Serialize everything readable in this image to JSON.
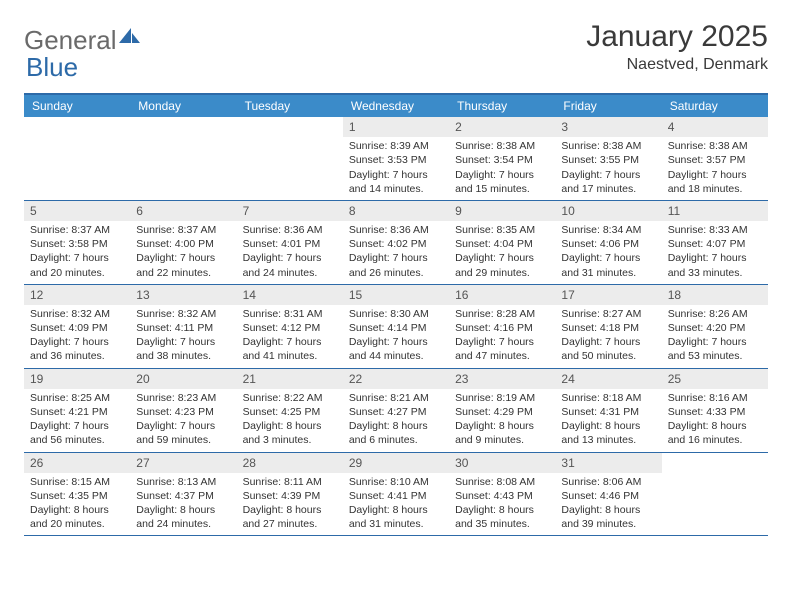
{
  "logo": {
    "part1": "General",
    "part2": "Blue"
  },
  "title": "January 2025",
  "location": "Naestved, Denmark",
  "colors": {
    "header_bar": "#3b8bc9",
    "border": "#2d6aa8",
    "daynum_bg": "#ececec",
    "text": "#333333",
    "logo_gray": "#6a6a6a",
    "logo_blue": "#2d6aa8"
  },
  "day_headers": [
    "Sunday",
    "Monday",
    "Tuesday",
    "Wednesday",
    "Thursday",
    "Friday",
    "Saturday"
  ],
  "weeks": [
    [
      null,
      null,
      null,
      {
        "n": "1",
        "sr": "8:39 AM",
        "ss": "3:53 PM",
        "dl": "7 hours and 14 minutes."
      },
      {
        "n": "2",
        "sr": "8:38 AM",
        "ss": "3:54 PM",
        "dl": "7 hours and 15 minutes."
      },
      {
        "n": "3",
        "sr": "8:38 AM",
        "ss": "3:55 PM",
        "dl": "7 hours and 17 minutes."
      },
      {
        "n": "4",
        "sr": "8:38 AM",
        "ss": "3:57 PM",
        "dl": "7 hours and 18 minutes."
      }
    ],
    [
      {
        "n": "5",
        "sr": "8:37 AM",
        "ss": "3:58 PM",
        "dl": "7 hours and 20 minutes."
      },
      {
        "n": "6",
        "sr": "8:37 AM",
        "ss": "4:00 PM",
        "dl": "7 hours and 22 minutes."
      },
      {
        "n": "7",
        "sr": "8:36 AM",
        "ss": "4:01 PM",
        "dl": "7 hours and 24 minutes."
      },
      {
        "n": "8",
        "sr": "8:36 AM",
        "ss": "4:02 PM",
        "dl": "7 hours and 26 minutes."
      },
      {
        "n": "9",
        "sr": "8:35 AM",
        "ss": "4:04 PM",
        "dl": "7 hours and 29 minutes."
      },
      {
        "n": "10",
        "sr": "8:34 AM",
        "ss": "4:06 PM",
        "dl": "7 hours and 31 minutes."
      },
      {
        "n": "11",
        "sr": "8:33 AM",
        "ss": "4:07 PM",
        "dl": "7 hours and 33 minutes."
      }
    ],
    [
      {
        "n": "12",
        "sr": "8:32 AM",
        "ss": "4:09 PM",
        "dl": "7 hours and 36 minutes."
      },
      {
        "n": "13",
        "sr": "8:32 AM",
        "ss": "4:11 PM",
        "dl": "7 hours and 38 minutes."
      },
      {
        "n": "14",
        "sr": "8:31 AM",
        "ss": "4:12 PM",
        "dl": "7 hours and 41 minutes."
      },
      {
        "n": "15",
        "sr": "8:30 AM",
        "ss": "4:14 PM",
        "dl": "7 hours and 44 minutes."
      },
      {
        "n": "16",
        "sr": "8:28 AM",
        "ss": "4:16 PM",
        "dl": "7 hours and 47 minutes."
      },
      {
        "n": "17",
        "sr": "8:27 AM",
        "ss": "4:18 PM",
        "dl": "7 hours and 50 minutes."
      },
      {
        "n": "18",
        "sr": "8:26 AM",
        "ss": "4:20 PM",
        "dl": "7 hours and 53 minutes."
      }
    ],
    [
      {
        "n": "19",
        "sr": "8:25 AM",
        "ss": "4:21 PM",
        "dl": "7 hours and 56 minutes."
      },
      {
        "n": "20",
        "sr": "8:23 AM",
        "ss": "4:23 PM",
        "dl": "7 hours and 59 minutes."
      },
      {
        "n": "21",
        "sr": "8:22 AM",
        "ss": "4:25 PM",
        "dl": "8 hours and 3 minutes."
      },
      {
        "n": "22",
        "sr": "8:21 AM",
        "ss": "4:27 PM",
        "dl": "8 hours and 6 minutes."
      },
      {
        "n": "23",
        "sr": "8:19 AM",
        "ss": "4:29 PM",
        "dl": "8 hours and 9 minutes."
      },
      {
        "n": "24",
        "sr": "8:18 AM",
        "ss": "4:31 PM",
        "dl": "8 hours and 13 minutes."
      },
      {
        "n": "25",
        "sr": "8:16 AM",
        "ss": "4:33 PM",
        "dl": "8 hours and 16 minutes."
      }
    ],
    [
      {
        "n": "26",
        "sr": "8:15 AM",
        "ss": "4:35 PM",
        "dl": "8 hours and 20 minutes."
      },
      {
        "n": "27",
        "sr": "8:13 AM",
        "ss": "4:37 PM",
        "dl": "8 hours and 24 minutes."
      },
      {
        "n": "28",
        "sr": "8:11 AM",
        "ss": "4:39 PM",
        "dl": "8 hours and 27 minutes."
      },
      {
        "n": "29",
        "sr": "8:10 AM",
        "ss": "4:41 PM",
        "dl": "8 hours and 31 minutes."
      },
      {
        "n": "30",
        "sr": "8:08 AM",
        "ss": "4:43 PM",
        "dl": "8 hours and 35 minutes."
      },
      {
        "n": "31",
        "sr": "8:06 AM",
        "ss": "4:46 PM",
        "dl": "8 hours and 39 minutes."
      },
      null
    ]
  ],
  "labels": {
    "sunrise": "Sunrise: ",
    "sunset": "Sunset: ",
    "daylight": "Daylight: "
  }
}
